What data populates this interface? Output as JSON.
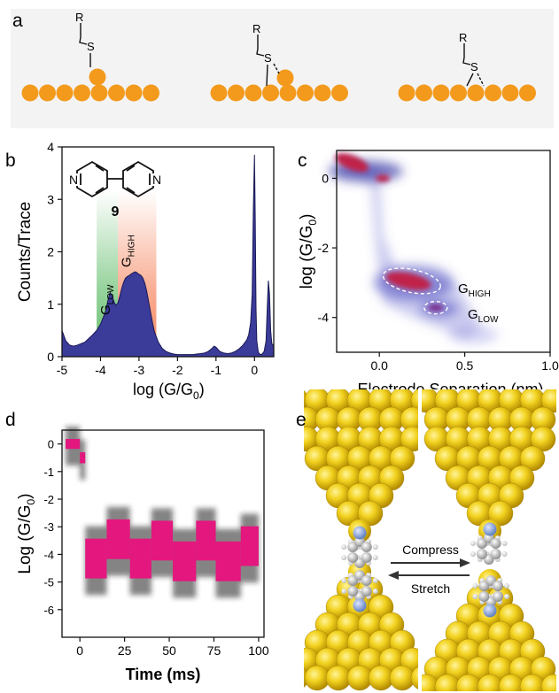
{
  "panel_labels": {
    "a": "a",
    "b": "b",
    "c": "c",
    "d": "d",
    "e": "e"
  },
  "panel_a": {
    "motifs": [
      {
        "r_label": "R",
        "s_label": "S",
        "binding": "top-adatom"
      },
      {
        "r_label": "R",
        "s_label": "S",
        "binding": "bridge-adatom"
      },
      {
        "r_label": "R",
        "s_label": "S",
        "binding": "surface-bridge"
      }
    ],
    "gold_color": "#f39a1d"
  },
  "chart_data": [
    {
      "panel": "b",
      "type": "area",
      "xlabel": "log (G/G",
      "xlabel_sub": "0",
      "xlabel_close": ")",
      "ylabel": "Counts/Trace",
      "xlim": [
        -5,
        0.5
      ],
      "ylim": [
        0,
        4
      ],
      "xticks": [
        -5,
        -4,
        -3,
        -2,
        -1,
        0
      ],
      "yticks": [
        0,
        1,
        2,
        3,
        4
      ],
      "fill_color": "#3b3b9a",
      "x": [
        -5.0,
        -4.9,
        -4.8,
        -4.7,
        -4.6,
        -4.5,
        -4.4,
        -4.3,
        -4.2,
        -4.1,
        -4.0,
        -3.9,
        -3.85,
        -3.8,
        -3.75,
        -3.7,
        -3.65,
        -3.6,
        -3.55,
        -3.5,
        -3.45,
        -3.4,
        -3.35,
        -3.3,
        -3.25,
        -3.2,
        -3.15,
        -3.1,
        -3.05,
        -3.0,
        -2.95,
        -2.9,
        -2.85,
        -2.8,
        -2.75,
        -2.7,
        -2.65,
        -2.6,
        -2.5,
        -2.4,
        -2.3,
        -2.2,
        -2.1,
        -2.0,
        -1.9,
        -1.8,
        -1.7,
        -1.6,
        -1.5,
        -1.4,
        -1.3,
        -1.2,
        -1.1,
        -1.05,
        -1.0,
        -0.95,
        -0.9,
        -0.8,
        -0.7,
        -0.6,
        -0.5,
        -0.4,
        -0.3,
        -0.2,
        -0.15,
        -0.1,
        -0.06,
        -0.03,
        0.0,
        0.02,
        0.04,
        0.06,
        0.1,
        0.15,
        0.2,
        0.25,
        0.3,
        0.33,
        0.36,
        0.39,
        0.42,
        0.45,
        0.5
      ],
      "y": [
        0.5,
        0.3,
        0.22,
        0.2,
        0.22,
        0.25,
        0.28,
        0.35,
        0.42,
        0.5,
        0.62,
        0.8,
        0.92,
        1.1,
        1.22,
        1.16,
        1.05,
        0.98,
        1.02,
        1.15,
        1.3,
        1.42,
        1.5,
        1.53,
        1.55,
        1.58,
        1.6,
        1.62,
        1.6,
        1.57,
        1.55,
        1.5,
        1.4,
        1.25,
        1.05,
        0.85,
        0.65,
        0.48,
        0.28,
        0.16,
        0.1,
        0.07,
        0.05,
        0.04,
        0.04,
        0.04,
        0.04,
        0.04,
        0.05,
        0.06,
        0.07,
        0.1,
        0.16,
        0.2,
        0.18,
        0.14,
        0.1,
        0.07,
        0.06,
        0.07,
        0.1,
        0.15,
        0.22,
        0.32,
        0.42,
        0.65,
        1.2,
        2.8,
        3.85,
        2.6,
        0.9,
        0.3,
        0.08,
        0.04,
        0.05,
        0.1,
        0.3,
        0.9,
        1.45,
        1.2,
        0.5,
        0.25,
        0.2
      ],
      "molecule_label": "9",
      "bands": [
        {
          "label": "G",
          "sub": "LOW",
          "x_range": [
            -4.1,
            -3.55
          ],
          "color": "#3fae4a"
        },
        {
          "label": "G",
          "sub": "HIGH",
          "x_range": [
            -3.55,
            -2.55
          ],
          "color": "#f36a3a"
        }
      ]
    },
    {
      "panel": "c",
      "type": "heatmap",
      "xlabel": "Electrode Separation (nm)",
      "ylabel": "log (G/G",
      "ylabel_sub": "0",
      "ylabel_close": ")",
      "xlim": [
        -0.25,
        1.0
      ],
      "ylim": [
        -5,
        0.8
      ],
      "xticks": [
        0.0,
        0.5,
        1.0
      ],
      "xtick_labels": [
        "0.0",
        "0.5",
        "1.0"
      ],
      "yticks": [
        0,
        -2,
        -4
      ],
      "annotations": [
        {
          "label": "G",
          "sub": "HIGH",
          "center": [
            0.2,
            -2.95
          ]
        },
        {
          "label": "G",
          "sub": "LOW",
          "center": [
            0.33,
            -3.72
          ]
        }
      ]
    },
    {
      "panel": "d",
      "type": "area",
      "xlabel": "Time (ms)",
      "ylabel": "Log (G/G",
      "ylabel_sub": "0",
      "ylabel_close": ")",
      "xlim": [
        -10,
        103
      ],
      "ylim": [
        -7,
        0.5
      ],
      "xticks": [
        0,
        25,
        50,
        75,
        100
      ],
      "yticks": [
        0,
        -1,
        -2,
        -3,
        -4,
        -5,
        -6
      ],
      "band_color": "#e3177e",
      "segments": [
        {
          "t": [
            -8,
            0
          ],
          "center": 0.0,
          "half": 0.18
        },
        {
          "t": [
            0,
            3
          ],
          "center": -0.5,
          "half": 0.2
        },
        {
          "t": [
            3,
            15
          ],
          "center": -4.15,
          "half": 0.72
        },
        {
          "t": [
            15,
            28
          ],
          "center": -3.45,
          "half": 0.72
        },
        {
          "t": [
            28,
            40
          ],
          "center": -4.15,
          "half": 0.72
        },
        {
          "t": [
            40,
            52
          ],
          "center": -3.5,
          "half": 0.72
        },
        {
          "t": [
            52,
            65
          ],
          "center": -4.25,
          "half": 0.72
        },
        {
          "t": [
            65,
            76
          ],
          "center": -3.5,
          "half": 0.72
        },
        {
          "t": [
            76,
            90
          ],
          "center": -4.25,
          "half": 0.72
        },
        {
          "t": [
            90,
            100
          ],
          "center": -3.7,
          "half": 0.72
        }
      ]
    }
  ],
  "panel_e": {
    "compress_label": "Compress",
    "stretch_label": "Stretch",
    "gold_color": "#f1cf24",
    "nitrogen_color": "#8fa8d8",
    "carbon_color": "#c8c8c8"
  }
}
